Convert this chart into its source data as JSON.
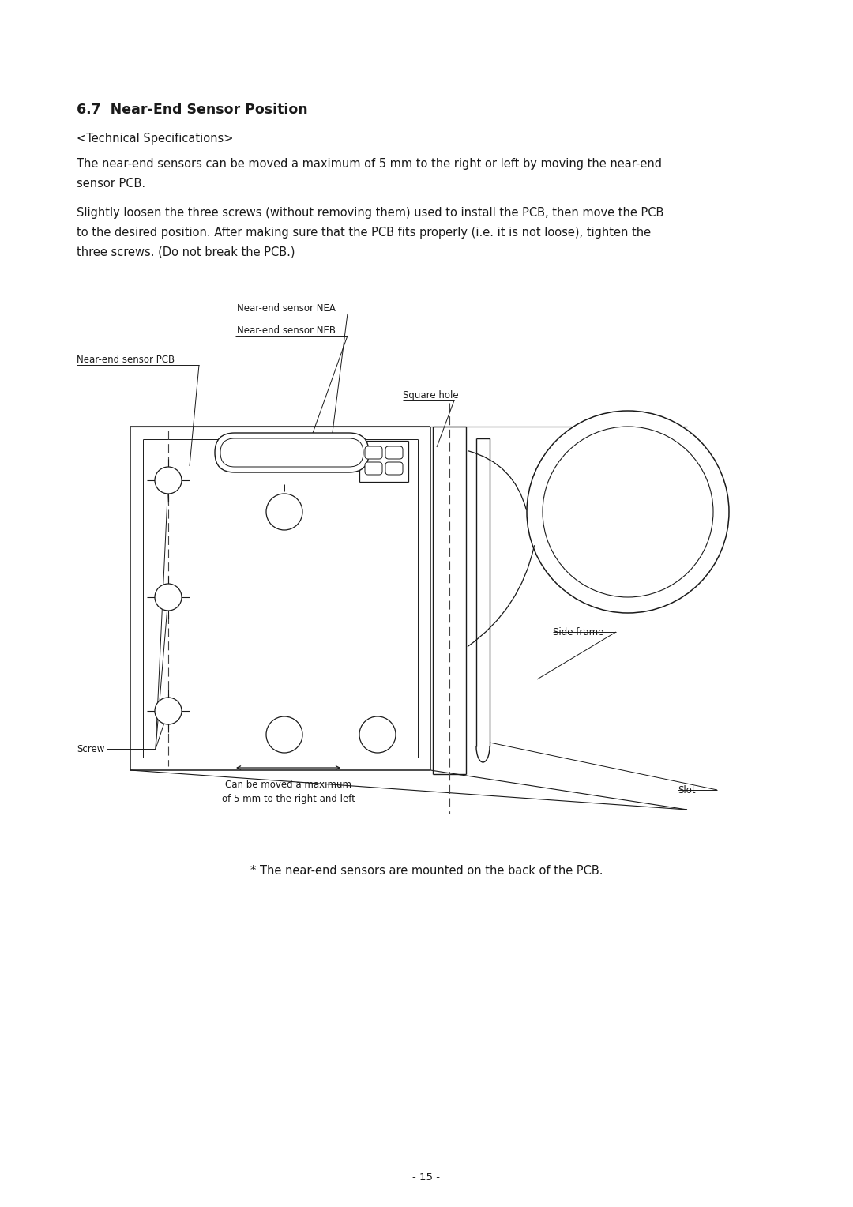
{
  "bg_color": "#ffffff",
  "title": "6.7  Near-End Sensor Position",
  "subtitle": "<Technical Specifications>",
  "para1": "The near-end sensors can be moved a maximum of 5 mm to the right or left by moving the near-end\nsensor PCB.",
  "para2": "Slightly loosen the three screws (without removing them) used to install the PCB, then move the PCB\nto the desired position. After making sure that the PCB fits properly (i.e. it is not loose), tighten the\nthree screws. (Do not break the PCB.)",
  "note": "* The near-end sensors are mounted on the back of the PCB.",
  "page_number": "- 15 -",
  "line_color": "#1a1a1a",
  "text_color": "#1a1a1a",
  "font_size_title": 12.5,
  "font_size_body": 10.5,
  "font_size_label": 8.5,
  "font_size_page": 9.5
}
